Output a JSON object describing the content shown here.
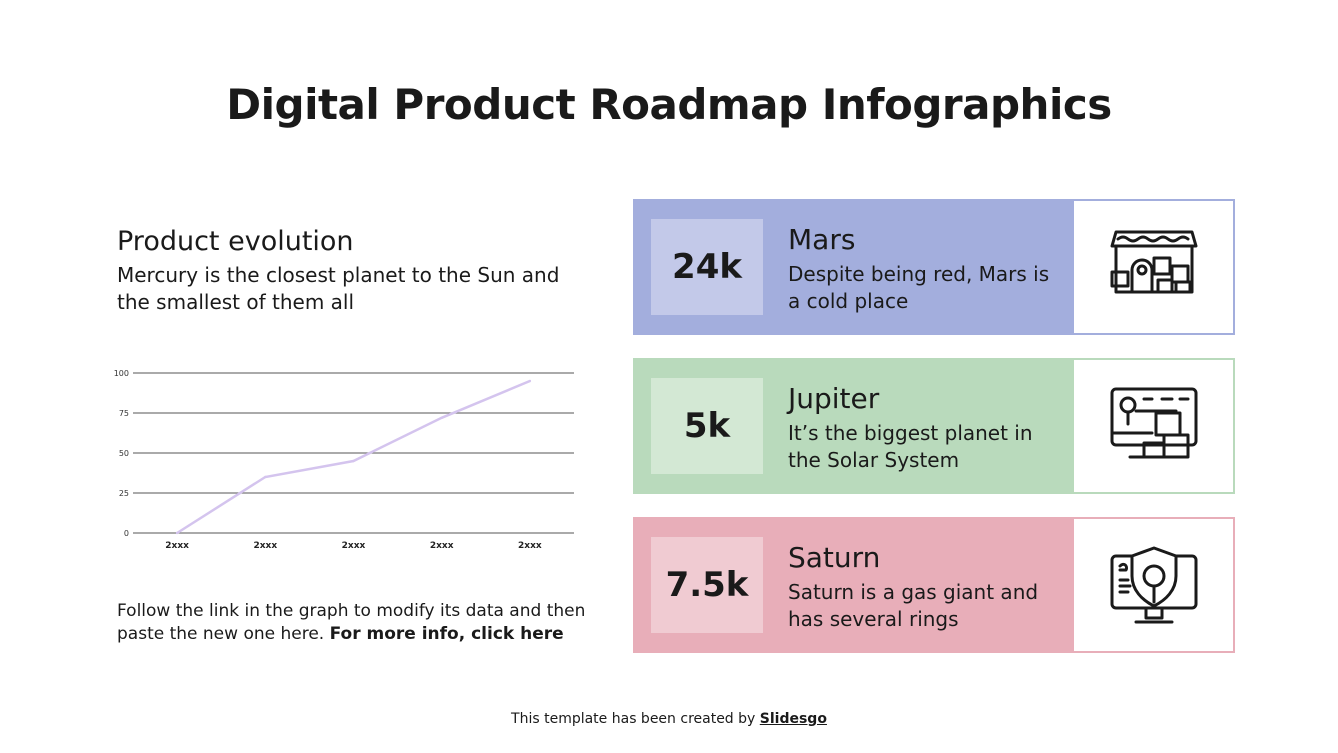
{
  "title": "Digital Product Roadmap Infographics",
  "left": {
    "subhead": "Product evolution",
    "desc": "Mercury is the closest planet to the Sun and the smallest of them all",
    "note_plain": "Follow the link in the graph to modify its data and then paste the new one here. ",
    "note_bold": "For more info, click here"
  },
  "chart_data": {
    "type": "line",
    "categories": [
      "2xxx",
      "2xxx",
      "2xxx",
      "2xxx",
      "2xxx"
    ],
    "values": [
      0,
      35,
      45,
      72,
      95
    ],
    "ylim": [
      0,
      100
    ],
    "yticks": [
      "0",
      "25",
      "50",
      "75",
      "100"
    ],
    "grid": true,
    "line_color": "#d4c4ee"
  },
  "cards": [
    {
      "stat": "24k",
      "name": "Mars",
      "text": "Despite being red, Mars is a cold place",
      "icon": "store-icon",
      "color": "#a3aedd",
      "inner": "#c3c9e9"
    },
    {
      "stat": "5k",
      "name": "Jupiter",
      "text": "It’s the biggest planet in the Solar System",
      "icon": "monitor-delivery-icon",
      "color": "#b9dabc",
      "inner": "#d3e8d4"
    },
    {
      "stat": "7.5k",
      "name": "Saturn",
      "text": "Saturn is a gas giant and has several rings",
      "icon": "monitor-shield-icon",
      "color": "#e8aeb9",
      "inner": "#f0cbd2"
    }
  ],
  "footer": {
    "plain": "This template has been created by ",
    "link": "Slidesgo"
  }
}
